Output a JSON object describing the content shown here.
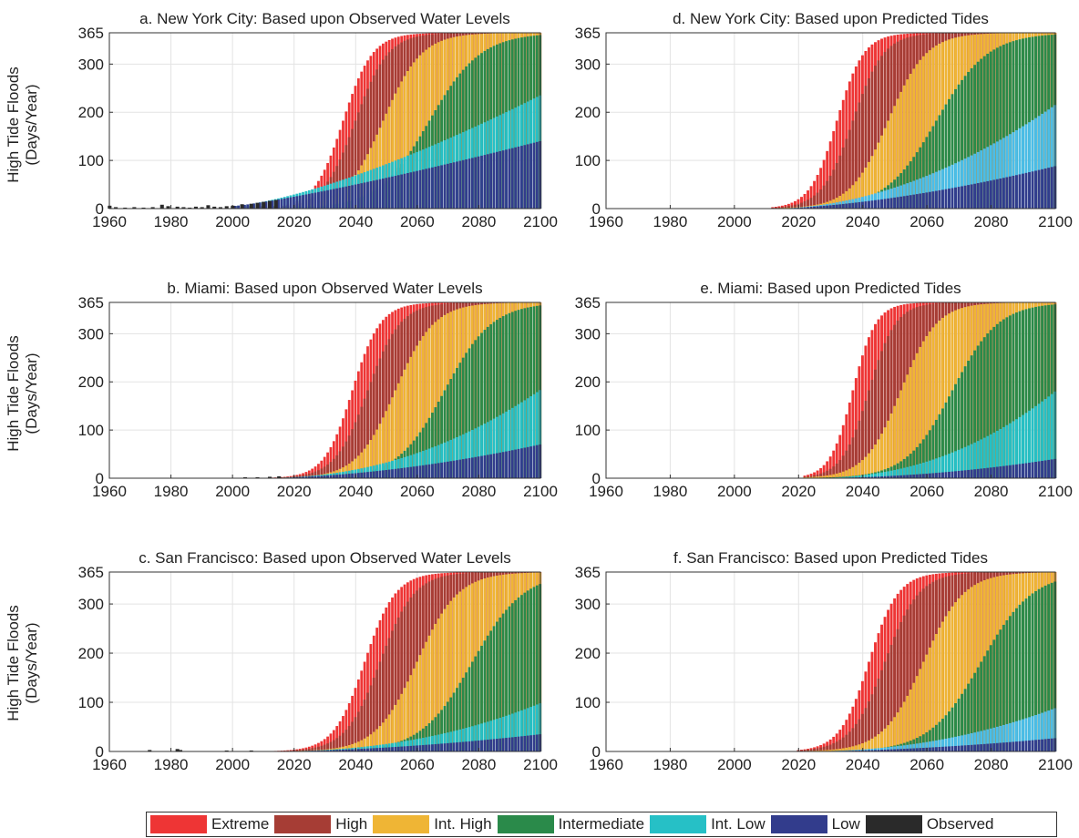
{
  "y_axis_label_line1": "High Tide Floods",
  "y_axis_label_line2": "(Days/Year)",
  "colors": {
    "Extreme": "#ee3535",
    "High": "#a63d35",
    "Int. High": "#efb535",
    "Intermediate": "#2a8a4a",
    "Int. Low": "#26c0c6",
    "Int. Low (predicted)": "#4bbde8",
    "Low": "#323c8c",
    "Observed": "#2a2a2a"
  },
  "legend": [
    "Extreme",
    "High",
    "Int. High",
    "Intermediate",
    "Int. Low",
    "Low",
    "Observed"
  ],
  "chart_data": [
    {
      "type": "bar",
      "title": "a. New York City: Based upon Observed Water Levels",
      "x_ticks": [
        "1960",
        "1980",
        "2000",
        "2020",
        "2040",
        "2060",
        "2080",
        "2100"
      ],
      "y_ticks": [
        "0",
        "100",
        "200",
        "300",
        "365"
      ],
      "xlim": [
        1960,
        2100
      ],
      "ylim": [
        0,
        365
      ],
      "stacked_overlay": true,
      "observed": [
        [
          1960,
          6
        ],
        [
          1962,
          3
        ],
        [
          1965,
          2
        ],
        [
          1968,
          3
        ],
        [
          1971,
          2
        ],
        [
          1974,
          3
        ],
        [
          1977,
          8
        ],
        [
          1979,
          5
        ],
        [
          1982,
          4
        ],
        [
          1984,
          3
        ],
        [
          1986,
          2
        ],
        [
          1988,
          4
        ],
        [
          1990,
          3
        ],
        [
          1992,
          7
        ],
        [
          1994,
          4
        ],
        [
          1996,
          3
        ],
        [
          1998,
          5
        ],
        [
          2000,
          6
        ],
        [
          2003,
          9
        ],
        [
          2006,
          10
        ],
        [
          2008,
          12
        ],
        [
          2010,
          14
        ],
        [
          2012,
          16
        ],
        [
          2014,
          18
        ]
      ],
      "series": [
        {
          "name": "Extreme",
          "start": 2000,
          "base": 5,
          "mid": 2036,
          "k": 0.21
        },
        {
          "name": "High",
          "start": 2000,
          "base": 5,
          "mid": 2040,
          "k": 0.19
        },
        {
          "name": "Int. High",
          "start": 2000,
          "base": 5,
          "mid": 2049,
          "k": 0.16
        },
        {
          "name": "Intermediate",
          "start": 2000,
          "base": 5,
          "mid": 2064,
          "k": 0.12
        },
        {
          "name": "Int. Low",
          "start": 2000,
          "base": 5,
          "end_value": 235,
          "pow": 1.4
        },
        {
          "name": "Low",
          "start": 2000,
          "base": 5,
          "end_value": 140,
          "pow": 1.2
        }
      ]
    },
    {
      "type": "bar",
      "title": "b. Miami: Based upon Observed Water Levels",
      "x_ticks": [
        "1960",
        "1980",
        "2000",
        "2020",
        "2040",
        "2060",
        "2080",
        "2100"
      ],
      "y_ticks": [
        "0",
        "100",
        "200",
        "300",
        "365"
      ],
      "xlim": [
        1960,
        2100
      ],
      "ylim": [
        0,
        365
      ],
      "stacked_overlay": true,
      "observed": [
        [
          2004,
          2
        ],
        [
          2008,
          2
        ],
        [
          2012,
          3
        ],
        [
          2015,
          4
        ]
      ],
      "series": [
        {
          "name": "Extreme",
          "start": 2008,
          "base": 0,
          "mid": 2039,
          "k": 0.22
        },
        {
          "name": "High",
          "start": 2008,
          "base": 0,
          "mid": 2044,
          "k": 0.19
        },
        {
          "name": "Int. High",
          "start": 2008,
          "base": 0,
          "mid": 2053,
          "k": 0.16
        },
        {
          "name": "Intermediate",
          "start": 2008,
          "base": 0,
          "mid": 2069,
          "k": 0.13
        },
        {
          "name": "Int. Low",
          "start": 2008,
          "base": 0,
          "end_value": 183,
          "pow": 2.2
        },
        {
          "name": "Low",
          "start": 2008,
          "base": 0,
          "end_value": 70,
          "pow": 1.8
        }
      ]
    },
    {
      "type": "bar",
      "title": "c. San Francisco: Based upon Observed Water Levels",
      "x_ticks": [
        "1960",
        "1980",
        "2000",
        "2020",
        "2040",
        "2060",
        "2080",
        "2100"
      ],
      "y_ticks": [
        "0",
        "100",
        "200",
        "300",
        "365"
      ],
      "xlim": [
        1960,
        2100
      ],
      "ylim": [
        0,
        365
      ],
      "stacked_overlay": true,
      "observed": [
        [
          1973,
          3
        ],
        [
          1982,
          5
        ],
        [
          1983,
          3
        ],
        [
          1998,
          2
        ],
        [
          2006,
          2
        ]
      ],
      "series": [
        {
          "name": "Extreme",
          "start": 2010,
          "base": 0,
          "mid": 2043,
          "k": 0.2
        },
        {
          "name": "High",
          "start": 2010,
          "base": 0,
          "mid": 2048,
          "k": 0.18
        },
        {
          "name": "Int. High",
          "start": 2010,
          "base": 0,
          "mid": 2060,
          "k": 0.15
        },
        {
          "name": "Intermediate",
          "start": 2010,
          "base": 0,
          "mid": 2078,
          "k": 0.12
        },
        {
          "name": "Int. Low",
          "start": 2010,
          "base": 0,
          "end_value": 98,
          "pow": 2.3
        },
        {
          "name": "Low",
          "start": 2010,
          "base": 0,
          "end_value": 35,
          "pow": 1.8
        }
      ]
    },
    {
      "type": "bar",
      "title": "d. New York City: Based upon Predicted Tides",
      "x_ticks": [
        "1960",
        "1980",
        "2000",
        "2020",
        "2040",
        "2060",
        "2080",
        "2100"
      ],
      "y_ticks": [
        "0",
        "100",
        "200",
        "300",
        "365"
      ],
      "xlim": [
        1960,
        2100
      ],
      "ylim": [
        0,
        365
      ],
      "stacked_overlay": true,
      "observed": [],
      "series": [
        {
          "name": "Extreme",
          "start": 2012,
          "base": 0,
          "mid": 2032,
          "k": 0.24
        },
        {
          "name": "High",
          "start": 2012,
          "base": 0,
          "mid": 2037,
          "k": 0.21
        },
        {
          "name": "Int. High",
          "start": 2012,
          "base": 0,
          "mid": 2048,
          "k": 0.17
        },
        {
          "name": "Intermediate",
          "start": 2012,
          "base": 0,
          "mid": 2063,
          "k": 0.125
        },
        {
          "name": "Int. Low (predicted)",
          "start": 2012,
          "base": 0,
          "end_value": 215,
          "pow": 1.9
        },
        {
          "name": "Low",
          "start": 2012,
          "base": 0,
          "end_value": 88,
          "pow": 1.6
        }
      ]
    },
    {
      "type": "bar",
      "title": "e. Miami: Based upon Predicted Tides",
      "x_ticks": [
        "1960",
        "1980",
        "2000",
        "2020",
        "2040",
        "2060",
        "2080",
        "2100"
      ],
      "y_ticks": [
        "0",
        "100",
        "200",
        "300",
        "365"
      ],
      "xlim": [
        1960,
        2100
      ],
      "ylim": [
        0,
        365
      ],
      "stacked_overlay": true,
      "observed": [],
      "series": [
        {
          "name": "Extreme",
          "start": 2022,
          "base": 0,
          "mid": 2037,
          "k": 0.28
        },
        {
          "name": "High",
          "start": 2022,
          "base": 0,
          "mid": 2042,
          "k": 0.24
        },
        {
          "name": "Int. High",
          "start": 2022,
          "base": 0,
          "mid": 2052,
          "k": 0.18
        },
        {
          "name": "Intermediate",
          "start": 2022,
          "base": 0,
          "mid": 2068,
          "k": 0.14
        },
        {
          "name": "Int. Low",
          "start": 2022,
          "base": 0,
          "end_value": 180,
          "pow": 2.3
        },
        {
          "name": "Low",
          "start": 2022,
          "base": 0,
          "end_value": 40,
          "pow": 2.0
        }
      ]
    },
    {
      "type": "bar",
      "title": "f. San Francisco: Based upon Predicted Tides",
      "x_ticks": [
        "1960",
        "1980",
        "2000",
        "2020",
        "2040",
        "2060",
        "2080",
        "2100"
      ],
      "y_ticks": [
        "0",
        "100",
        "200",
        "300",
        "365"
      ],
      "xlim": [
        1960,
        2100
      ],
      "ylim": [
        0,
        365
      ],
      "stacked_overlay": true,
      "observed": [],
      "series": [
        {
          "name": "Extreme",
          "start": 2020,
          "base": 0,
          "mid": 2042,
          "k": 0.22
        },
        {
          "name": "High",
          "start": 2020,
          "base": 0,
          "mid": 2047,
          "k": 0.19
        },
        {
          "name": "Int. High",
          "start": 2020,
          "base": 0,
          "mid": 2059,
          "k": 0.16
        },
        {
          "name": "Intermediate",
          "start": 2020,
          "base": 0,
          "mid": 2077,
          "k": 0.125
        },
        {
          "name": "Int. Low (predicted)",
          "start": 2020,
          "base": 0,
          "end_value": 88,
          "pow": 2.2
        },
        {
          "name": "Low",
          "start": 2020,
          "base": 0,
          "end_value": 27,
          "pow": 1.8
        }
      ]
    }
  ]
}
